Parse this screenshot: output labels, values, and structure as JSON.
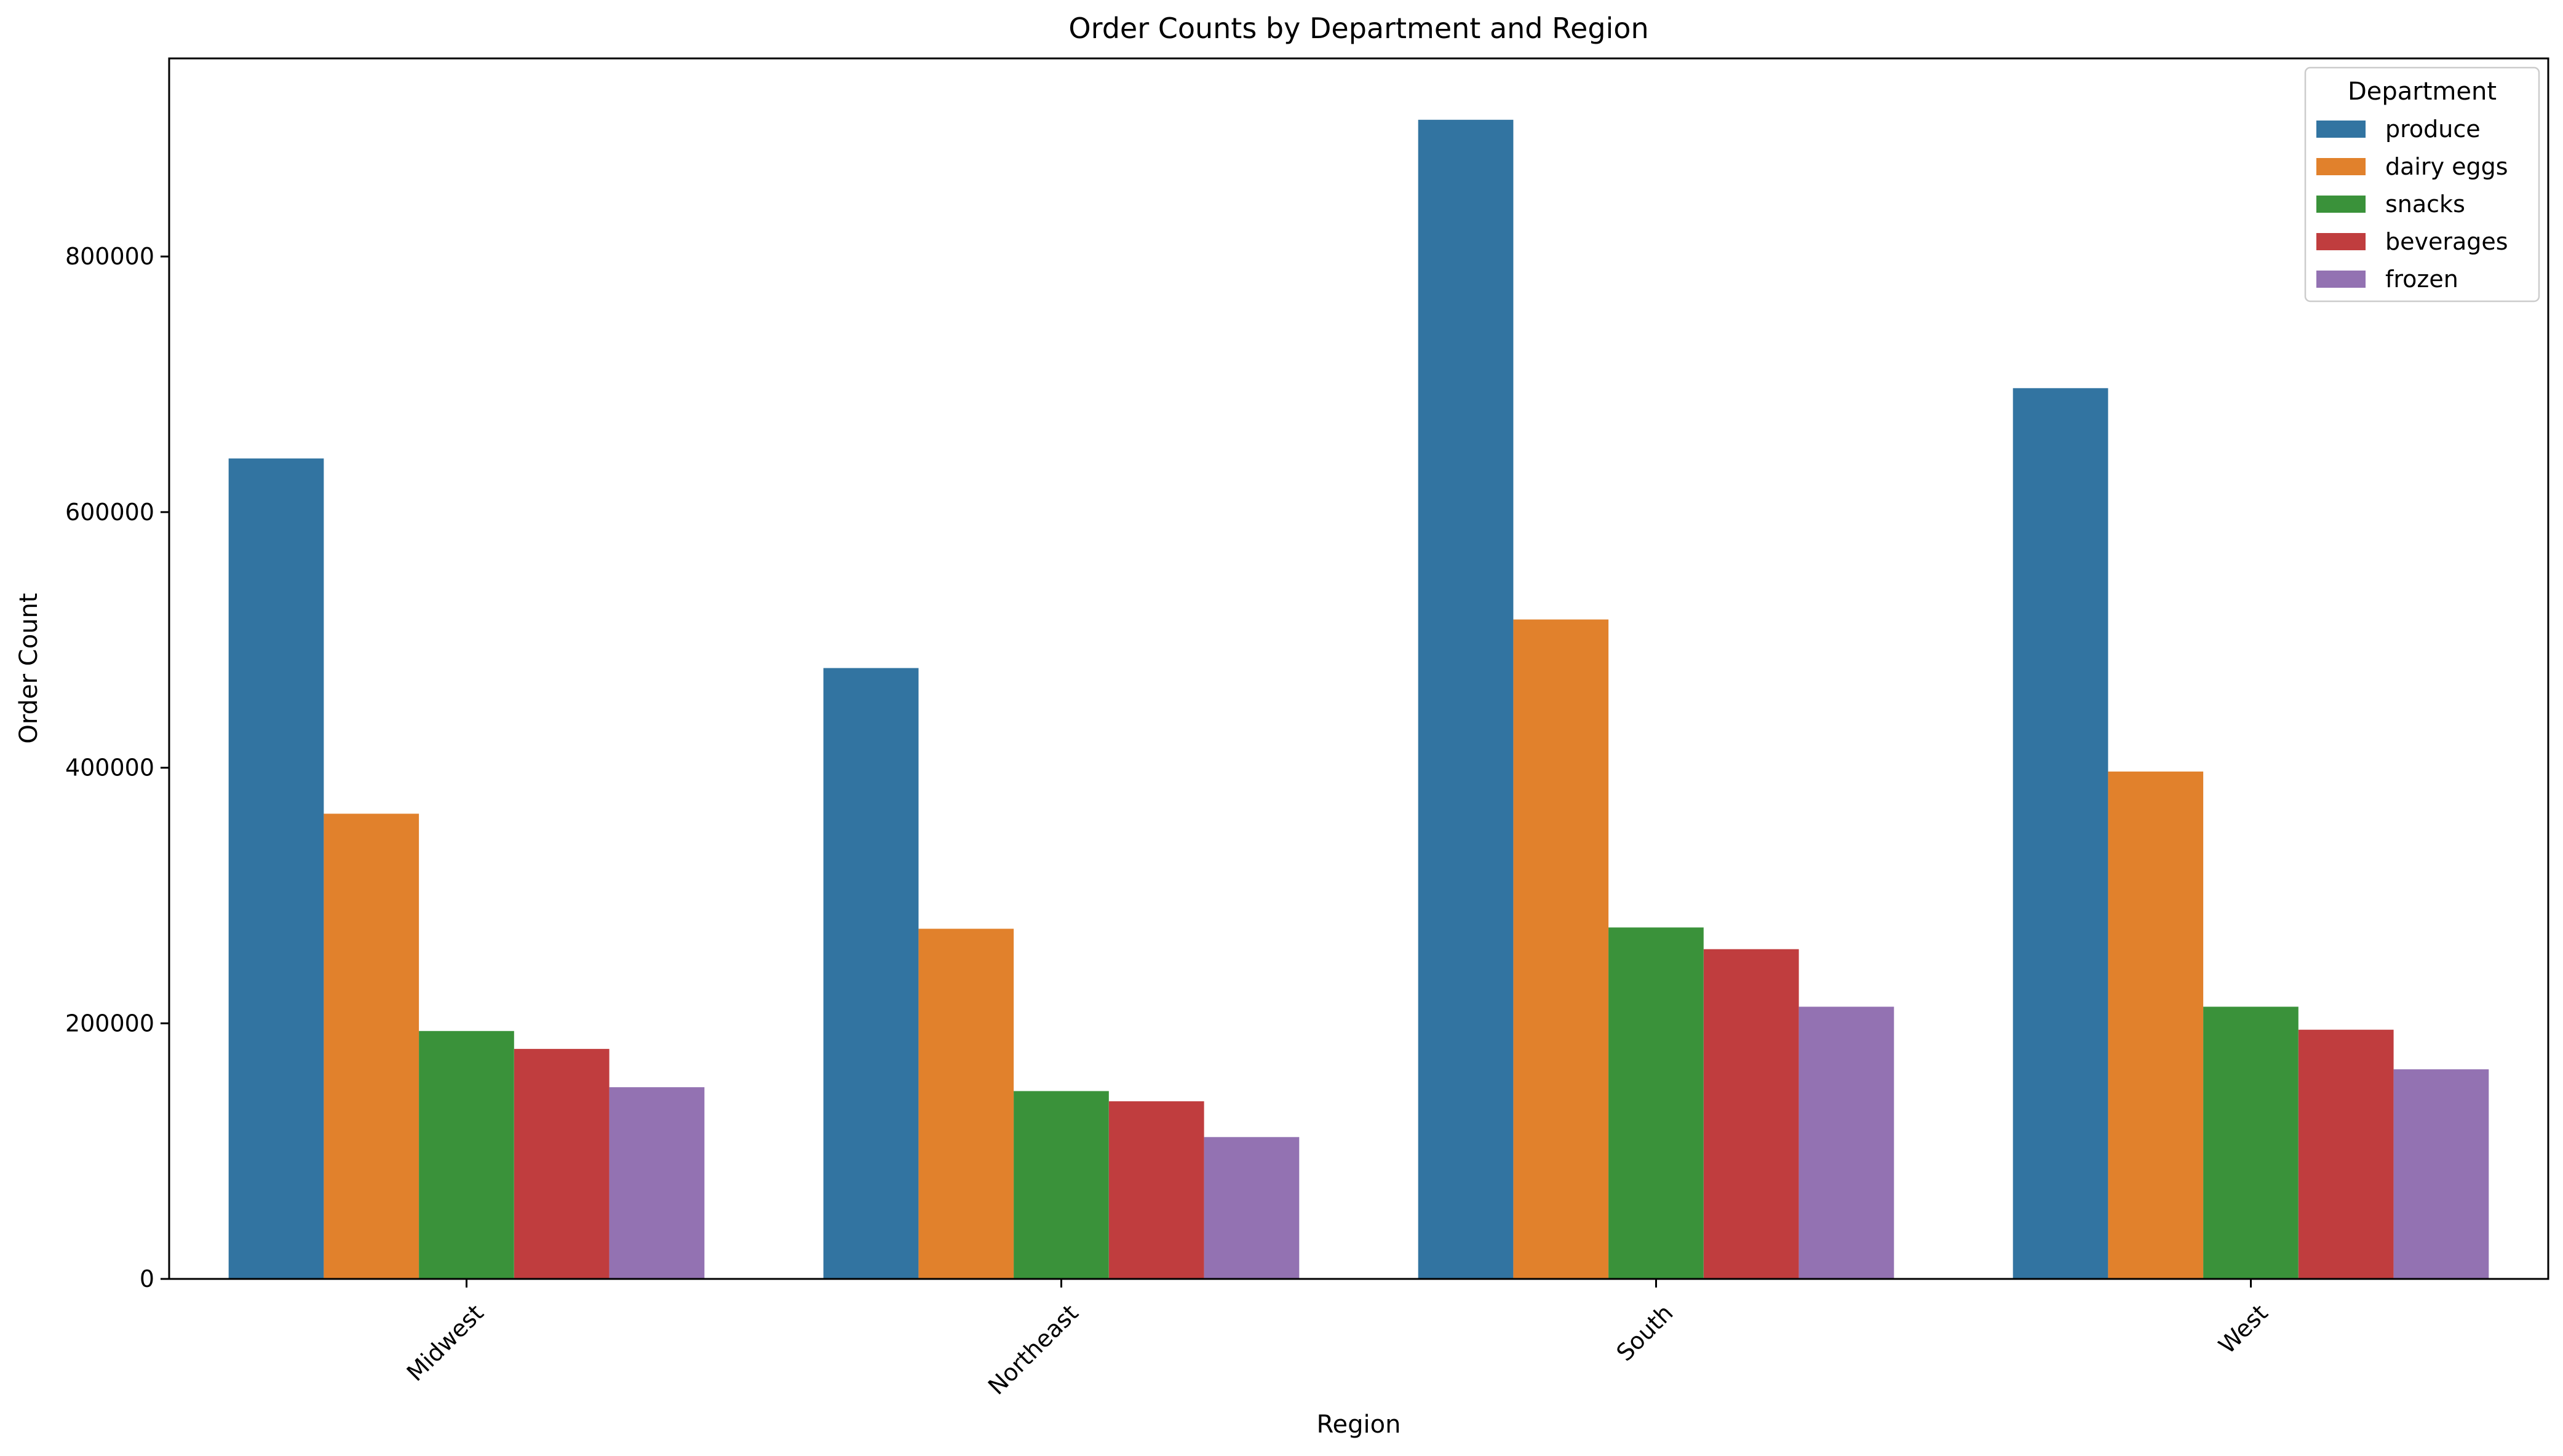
{
  "chart_data": {
    "type": "bar",
    "title": "Order Counts by Department and Region",
    "xlabel": "Region",
    "ylabel": "Order Count",
    "categories": [
      "Midwest",
      "Northeast",
      "South",
      "West"
    ],
    "ylim": [
      0,
      955000
    ],
    "yticks": [
      0,
      200000,
      400000,
      600000,
      800000
    ],
    "ytick_labels": [
      "0",
      "200000",
      "400000",
      "600000",
      "800000"
    ],
    "grid": false,
    "legend": {
      "title": "Department",
      "position": "top-right"
    },
    "series": [
      {
        "name": "produce",
        "color": "#3274a1",
        "values": [
          642000,
          478000,
          907000,
          697000
        ]
      },
      {
        "name": "dairy eggs",
        "color": "#e1812c",
        "values": [
          364000,
          274000,
          516000,
          397000
        ]
      },
      {
        "name": "snacks",
        "color": "#3a923a",
        "values": [
          194000,
          147000,
          275000,
          213000
        ]
      },
      {
        "name": "beverages",
        "color": "#c03d3e",
        "values": [
          180000,
          139000,
          258000,
          195000
        ]
      },
      {
        "name": "frozen",
        "color": "#9372b2",
        "values": [
          150000,
          111000,
          213000,
          164000
        ]
      }
    ]
  }
}
